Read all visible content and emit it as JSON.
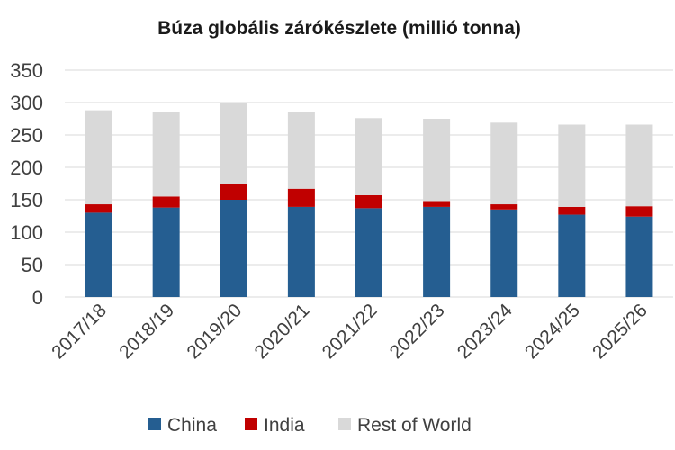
{
  "chart_data": {
    "type": "bar",
    "stacked": true,
    "title": "Búza globális zárókészlete (millió tonna)",
    "xlabel": "",
    "ylabel": "",
    "ylim": [
      0,
      350
    ],
    "yticks": [
      0,
      50,
      100,
      150,
      200,
      250,
      300,
      350
    ],
    "grid": true,
    "legend_position": "bottom",
    "categories": [
      "2017/18",
      "2018/19",
      "2019/20",
      "2020/21",
      "2021/22",
      "2022/23",
      "2023/24",
      "2024/25",
      "2025/26"
    ],
    "series": [
      {
        "name": "China",
        "color": "#255e91",
        "values": [
          130,
          138,
          150,
          139,
          137,
          139,
          135,
          127,
          124
        ]
      },
      {
        "name": "India",
        "color": "#c00000",
        "values": [
          13,
          17,
          25,
          28,
          20,
          9,
          8,
          12,
          16
        ]
      },
      {
        "name": "Rest of World",
        "color": "#d9d9d9",
        "values": [
          145,
          130,
          124,
          119,
          119,
          127,
          126,
          127,
          126
        ]
      }
    ]
  }
}
